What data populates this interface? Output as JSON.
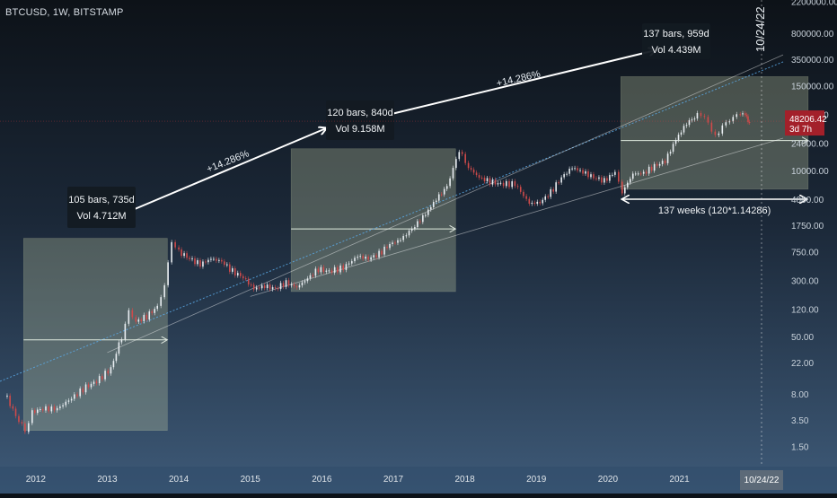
{
  "header": {
    "symbol": "BTCUSD, 1W, BITSTAMP"
  },
  "chart_data": {
    "type": "candlestick",
    "title": "BTCUSD, 1W, BITSTAMP",
    "y_scale": "log",
    "ylim": [
      0.9,
      2200000
    ],
    "xlim": [
      2011.5,
      2022.45
    ],
    "xlabel": "",
    "ylabel": "",
    "x_ticks": [
      {
        "label": "2012",
        "value": 2012.0
      },
      {
        "label": "2013",
        "value": 2013.0
      },
      {
        "label": "2014",
        "value": 2014.0
      },
      {
        "label": "2015",
        "value": 2015.0
      },
      {
        "label": "2016",
        "value": 2016.0
      },
      {
        "label": "2017",
        "value": 2017.0
      },
      {
        "label": "2018",
        "value": 2018.0
      },
      {
        "label": "2019",
        "value": 2019.0
      },
      {
        "label": "2020",
        "value": 2020.0
      },
      {
        "label": "2021",
        "value": 2021.0
      },
      {
        "label": "2022",
        "value": 2022.0
      }
    ],
    "y_ticks": [
      {
        "label": "2200000.00",
        "value": 2200000
      },
      {
        "label": "800000.00",
        "value": 800000
      },
      {
        "label": "350000.00",
        "value": 350000
      },
      {
        "label": "150000.00",
        "value": 150000
      },
      {
        "label": "60000.00",
        "value": 60000
      },
      {
        "label": "24000.00",
        "value": 24000
      },
      {
        "label": "10000.00",
        "value": 10000
      },
      {
        "label": "4000.00",
        "value": 4000
      },
      {
        "label": "1750.00",
        "value": 1750
      },
      {
        "label": "750.00",
        "value": 750
      },
      {
        "label": "300.00",
        "value": 300
      },
      {
        "label": "120.00",
        "value": 120
      },
      {
        "label": "50.00",
        "value": 50
      },
      {
        "label": "22.00",
        "value": 22
      },
      {
        "label": "8.00",
        "value": 8
      },
      {
        "label": "3.50",
        "value": 3.5
      },
      {
        "label": "1.50",
        "value": 1.5
      }
    ],
    "price_path": [
      [
        2011.6,
        7
      ],
      [
        2011.72,
        4
      ],
      [
        2011.85,
        2.5
      ],
      [
        2011.95,
        4.5
      ],
      [
        2012.1,
        5
      ],
      [
        2012.3,
        5
      ],
      [
        2012.5,
        7
      ],
      [
        2012.7,
        10
      ],
      [
        2012.85,
        12
      ],
      [
        2013.05,
        18
      ],
      [
        2013.2,
        50
      ],
      [
        2013.3,
        110
      ],
      [
        2013.4,
        80
      ],
      [
        2013.55,
        95
      ],
      [
        2013.7,
        130
      ],
      [
        2013.8,
        250
      ],
      [
        2013.9,
        1100
      ],
      [
        2014.0,
        750
      ],
      [
        2014.15,
        600
      ],
      [
        2014.3,
        500
      ],
      [
        2014.45,
        600
      ],
      [
        2014.6,
        550
      ],
      [
        2014.75,
        400
      ],
      [
        2014.9,
        330
      ],
      [
        2015.05,
        230
      ],
      [
        2015.2,
        250
      ],
      [
        2015.35,
        230
      ],
      [
        2015.5,
        280
      ],
      [
        2015.65,
        240
      ],
      [
        2015.8,
        320
      ],
      [
        2015.95,
        430
      ],
      [
        2016.1,
        400
      ],
      [
        2016.3,
        450
      ],
      [
        2016.5,
        650
      ],
      [
        2016.65,
        600
      ],
      [
        2016.8,
        700
      ],
      [
        2016.95,
        950
      ],
      [
        2017.1,
        1100
      ],
      [
        2017.3,
        1700
      ],
      [
        2017.45,
        2500
      ],
      [
        2017.6,
        4000
      ],
      [
        2017.75,
        6000
      ],
      [
        2017.92,
        19000
      ],
      [
        2018.05,
        11000
      ],
      [
        2018.2,
        8000
      ],
      [
        2018.35,
        7000
      ],
      [
        2018.5,
        6500
      ],
      [
        2018.7,
        6500
      ],
      [
        2018.9,
        3500
      ],
      [
        2019.05,
        3600
      ],
      [
        2019.2,
        5000
      ],
      [
        2019.35,
        8000
      ],
      [
        2019.5,
        11000
      ],
      [
        2019.65,
        9500
      ],
      [
        2019.8,
        8000
      ],
      [
        2019.95,
        7200
      ],
      [
        2020.1,
        9500
      ],
      [
        2020.2,
        5000
      ],
      [
        2020.35,
        9000
      ],
      [
        2020.5,
        9200
      ],
      [
        2020.65,
        11500
      ],
      [
        2020.8,
        13500
      ],
      [
        2020.95,
        27000
      ],
      [
        2021.1,
        45000
      ],
      [
        2021.25,
        58000
      ],
      [
        2021.35,
        56000
      ],
      [
        2021.45,
        35000
      ],
      [
        2021.55,
        33000
      ],
      [
        2021.65,
        45000
      ],
      [
        2021.75,
        55000
      ],
      [
        2021.85,
        64000
      ],
      [
        2021.92,
        58000
      ],
      [
        2021.96,
        49000
      ],
      [
        2022.0,
        48206.42
      ]
    ],
    "measure_boxes": [
      {
        "label": "105 bars, 735d\nVol 4.712M",
        "x0": 2011.83,
        "x1": 2013.84,
        "y_low": 2.5,
        "y_high": 1150,
        "y_start": 45
      },
      {
        "label": "120 bars, 840d\nVol 9.158M",
        "x0": 2015.57,
        "x1": 2017.87,
        "y_low": 210,
        "y_high": 20000,
        "y_start": 1550
      },
      {
        "label": "137 bars, 959d\nVol 4.439M",
        "x0": 2020.18,
        "x1": 2022.8,
        "y_low": 5500,
        "y_high": 200000,
        "y_start": 26000
      }
    ],
    "annotations": [
      {
        "text": "+14.286%"
      },
      {
        "text": "+14.286%"
      },
      {
        "text": "137 weeks (120*1.14286)"
      }
    ],
    "last_price": {
      "value": "48206.42",
      "countdown": "3d 7h"
    },
    "vertical_marker": {
      "label": "10/24/22",
      "axis_label": "10/24/22"
    }
  }
}
